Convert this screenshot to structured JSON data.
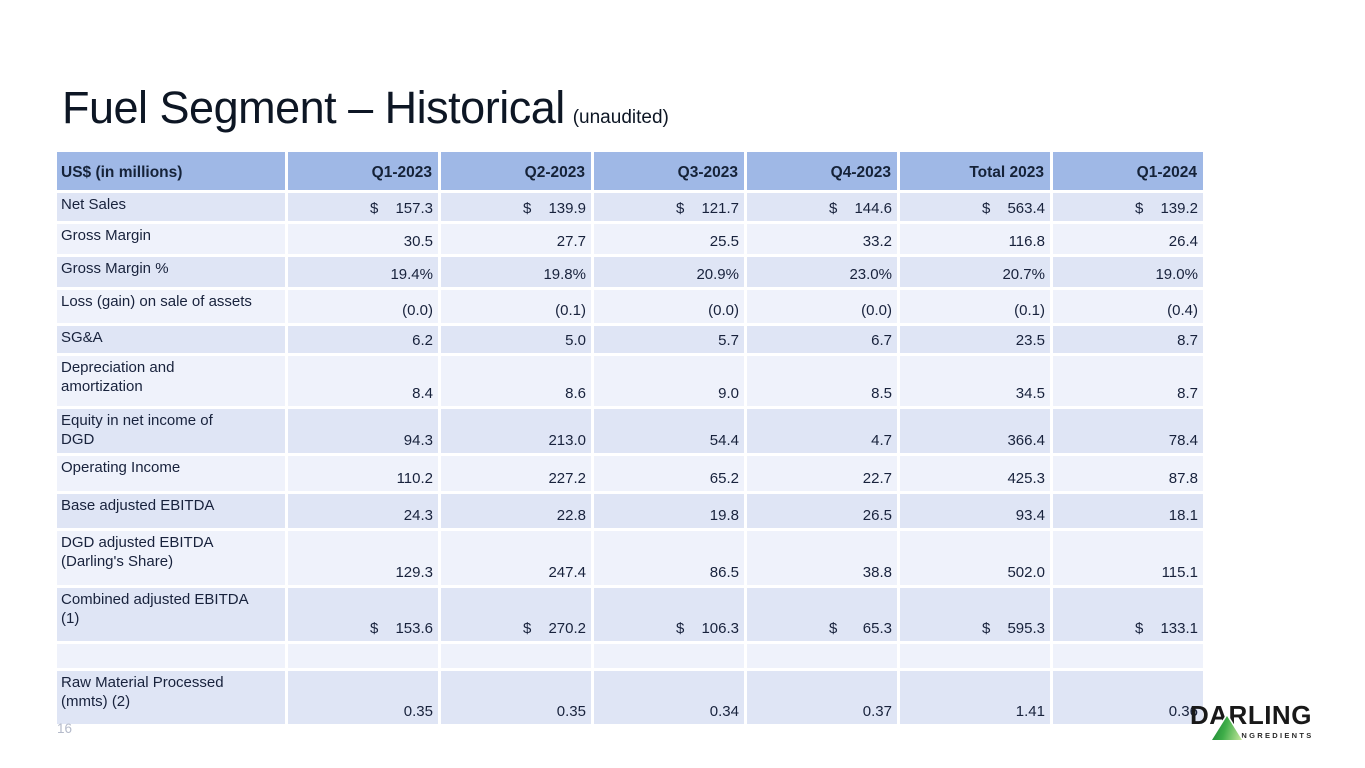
{
  "slide": {
    "title": "Fuel Segment – Historical",
    "title_suffix": "(unaudited)",
    "page_number": "16"
  },
  "table": {
    "columns": [
      "US$ (in millions)",
      "Q1-2023",
      "Q2-2023",
      "Q3-2023",
      "Q4-2023",
      "Total 2023",
      "Q1-2024"
    ],
    "rows": [
      {
        "label": "Net Sales",
        "dollar": true,
        "values": [
          "157.3",
          "139.9",
          "121.7",
          "144.6",
          "563.4",
          "139.2"
        ]
      },
      {
        "label": "Gross Margin",
        "dollar": false,
        "values": [
          "30.5",
          "27.7",
          "25.5",
          "33.2",
          "116.8",
          "26.4"
        ]
      },
      {
        "label": "Gross Margin %",
        "dollar": false,
        "values": [
          "19.4%",
          "19.8%",
          "20.9%",
          "23.0%",
          "20.7%",
          "19.0%"
        ]
      },
      {
        "label": "Loss (gain) on sale of assets",
        "dollar": false,
        "values": [
          "(0.0)",
          "(0.1)",
          "(0.0)",
          "(0.0)",
          "(0.1)",
          "(0.4)"
        ]
      },
      {
        "label": "SG&A",
        "dollar": false,
        "values": [
          "6.2",
          "5.0",
          "5.7",
          "6.7",
          "23.5",
          "8.7"
        ]
      },
      {
        "label": "Depreciation and\namortization",
        "dollar": false,
        "values": [
          "8.4",
          "8.6",
          "9.0",
          "8.5",
          "34.5",
          "8.7"
        ]
      },
      {
        "label": "Equity in net income of\nDGD",
        "dollar": false,
        "values": [
          "94.3",
          "213.0",
          "54.4",
          "4.7",
          "366.4",
          "78.4"
        ]
      },
      {
        "label": "Operating Income",
        "dollar": false,
        "values": [
          "110.2",
          "227.2",
          "65.2",
          "22.7",
          "425.3",
          "87.8"
        ]
      },
      {
        "label": "Base adjusted EBITDA",
        "dollar": false,
        "values": [
          "24.3",
          "22.8",
          "19.8",
          "26.5",
          "93.4",
          "18.1"
        ]
      },
      {
        "label": "DGD adjusted EBITDA\n(Darling's Share)",
        "dollar": false,
        "values": [
          "129.3",
          "247.4",
          "86.5",
          "38.8",
          "502.0",
          "115.1"
        ]
      },
      {
        "label": "Combined adjusted EBITDA\n(1)",
        "dollar": true,
        "values": [
          "153.6",
          "270.2",
          "106.3",
          "65.3",
          "595.3",
          "133.1"
        ]
      },
      {
        "label": "",
        "dollar": false,
        "values": [
          "",
          "",
          "",
          "",
          "",
          ""
        ]
      },
      {
        "label": "Raw Material Processed\n(mmts) (2)",
        "dollar": false,
        "values": [
          "0.35",
          "0.35",
          "0.34",
          "0.37",
          "1.41",
          "0.36"
        ]
      }
    ],
    "currency_symbol": "$"
  },
  "logo": {
    "name": "DARLING",
    "sub": "INGREDIENTS"
  },
  "colors": {
    "headerBg": "#9FB8E6",
    "headerText": "#152238",
    "bandDark": "#DFE5F5",
    "bandLight": "#EFF2FB",
    "text": "#18223C",
    "title": "#0D1624",
    "green": "#157F31"
  }
}
